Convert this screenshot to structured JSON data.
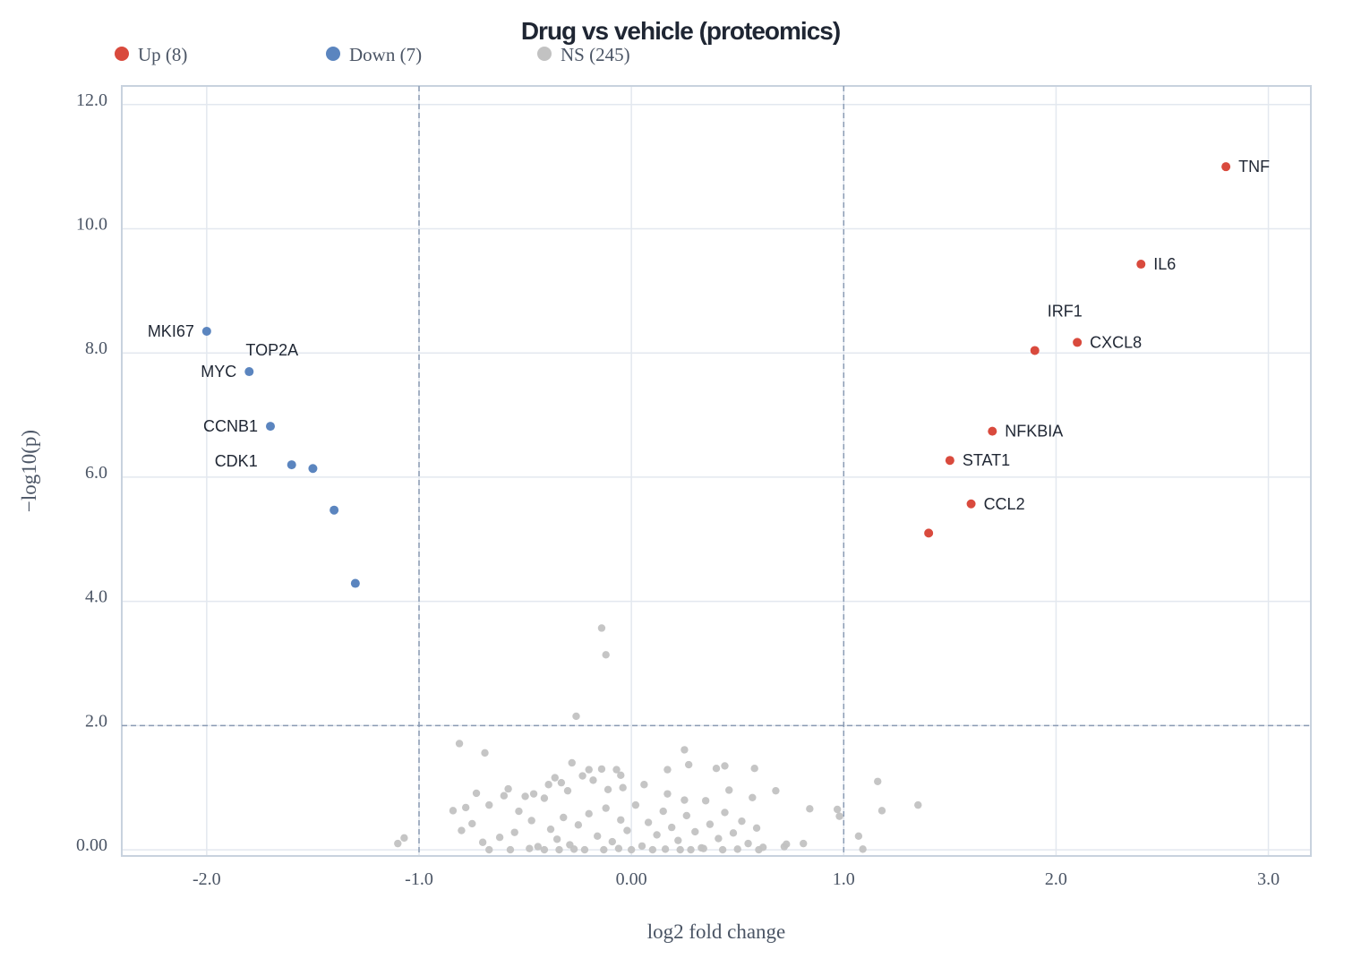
{
  "chart_data": {
    "type": "scatter",
    "title": "Drug vs vehicle (proteomics)",
    "xlabel": "log2 fold change",
    "ylabel": "−log10(p)",
    "xlim": [
      -2.4,
      3.2
    ],
    "ylim": [
      -0.1,
      12.3
    ],
    "x_ticks": [
      {
        "value": -2.0,
        "label": "-2.0"
      },
      {
        "value": -1.0,
        "label": "-1.0"
      },
      {
        "value": 0.0,
        "label": "0.00"
      },
      {
        "value": 1.0,
        "label": "1.0"
      },
      {
        "value": 2.0,
        "label": "2.0"
      },
      {
        "value": 3.0,
        "label": "3.0"
      }
    ],
    "y_ticks": [
      {
        "value": 0.0,
        "label": "0.00"
      },
      {
        "value": 2.0,
        "label": "2.0"
      },
      {
        "value": 4.0,
        "label": "4.0"
      },
      {
        "value": 6.0,
        "label": "6.0"
      },
      {
        "value": 8.0,
        "label": "8.0"
      },
      {
        "value": 10.0,
        "label": "10.0"
      },
      {
        "value": 12.0,
        "label": "12.0"
      }
    ],
    "thresholds": {
      "x": [
        -1.0,
        1.0
      ],
      "y": [
        2.0
      ]
    },
    "grid": true,
    "legend_position": "top-left",
    "colors": {
      "up": "#d94a3d",
      "down": "#5b85bf",
      "ns": "#c2c2c2"
    },
    "legend": [
      {
        "key": "up",
        "label": "Up (8)"
      },
      {
        "key": "down",
        "label": "Down (7)"
      },
      {
        "key": "ns",
        "label": "NS (245)"
      }
    ],
    "series": [
      {
        "key": "up",
        "points": [
          {
            "x": 2.8,
            "y": 11.0,
            "label": "TNF"
          },
          {
            "x": 2.4,
            "y": 9.43,
            "label": "IL6"
          },
          {
            "x": 2.1,
            "y": 8.17,
            "label": "CXCL8"
          },
          {
            "x": 1.9,
            "y": 8.04,
            "label": "IRF1"
          },
          {
            "x": 1.7,
            "y": 6.74,
            "label": "NFKBIA"
          },
          {
            "x": 1.5,
            "y": 6.27,
            "label": "STAT1"
          },
          {
            "x": 1.6,
            "y": 5.57,
            "label": "CCL2"
          },
          {
            "x": 1.4,
            "y": 5.1
          }
        ]
      },
      {
        "key": "down",
        "points": [
          {
            "x": -2.0,
            "y": 8.35,
            "label": "MKI67"
          },
          {
            "x": -1.8,
            "y": 7.7,
            "label": "MYC"
          },
          {
            "x": -1.7,
            "y": 6.82,
            "label": "CCNB1"
          },
          {
            "x": -1.6,
            "y": 6.2,
            "label": "CDK1"
          },
          {
            "x": -1.5,
            "y": 6.14,
            "label": "TOP2A"
          },
          {
            "x": -1.4,
            "y": 5.47
          },
          {
            "x": -1.3,
            "y": 4.29
          }
        ]
      },
      {
        "key": "ns",
        "points": [
          {
            "x": -0.14,
            "y": 3.57
          },
          {
            "x": -0.12,
            "y": 3.14
          },
          {
            "x": -0.26,
            "y": 2.15
          },
          {
            "x": -0.81,
            "y": 1.71
          },
          {
            "x": -0.69,
            "y": 1.56
          },
          {
            "x": 0.25,
            "y": 1.61
          },
          {
            "x": 0.27,
            "y": 1.37
          },
          {
            "x": 0.44,
            "y": 1.35
          },
          {
            "x": 0.58,
            "y": 1.31
          },
          {
            "x": -0.28,
            "y": 1.4
          },
          {
            "x": -0.2,
            "y": 1.29
          },
          {
            "x": -0.14,
            "y": 1.3
          },
          {
            "x": -0.07,
            "y": 1.29
          },
          {
            "x": -0.05,
            "y": 1.2
          },
          {
            "x": 0.17,
            "y": 1.29
          },
          {
            "x": 0.4,
            "y": 1.31
          },
          {
            "x": 1.16,
            "y": 1.1
          },
          {
            "x": -1.07,
            "y": 0.19
          },
          {
            "x": -1.1,
            "y": 0.1
          },
          {
            "x": 1.35,
            "y": 0.72
          },
          {
            "x": 1.18,
            "y": 0.63
          },
          {
            "x": 0.84,
            "y": 0.66
          },
          {
            "x": 0.97,
            "y": 0.65
          },
          {
            "x": 0.98,
            "y": 0.54
          },
          {
            "x": 1.07,
            "y": 0.22
          },
          {
            "x": 1.09,
            "y": 0.01
          },
          {
            "x": 0.81,
            "y": 0.1
          },
          {
            "x": 0.72,
            "y": 0.05
          },
          {
            "x": 0.73,
            "y": 0.09
          },
          {
            "x": 0.68,
            "y": 0.95
          },
          {
            "x": -0.84,
            "y": 0.63
          },
          {
            "x": -0.78,
            "y": 0.68
          },
          {
            "x": -0.73,
            "y": 0.91
          },
          {
            "x": -0.67,
            "y": 0.72
          },
          {
            "x": -0.6,
            "y": 0.87
          },
          {
            "x": -0.58,
            "y": 0.98
          },
          {
            "x": -0.53,
            "y": 0.62
          },
          {
            "x": -0.5,
            "y": 0.86
          },
          {
            "x": -0.46,
            "y": 0.9
          },
          {
            "x": -0.41,
            "y": 0.83
          },
          {
            "x": -0.39,
            "y": 1.05
          },
          {
            "x": -0.36,
            "y": 1.16
          },
          {
            "x": -0.33,
            "y": 1.08
          },
          {
            "x": -0.3,
            "y": 0.95
          },
          {
            "x": -0.23,
            "y": 1.19
          },
          {
            "x": -0.18,
            "y": 1.12
          },
          {
            "x": -0.11,
            "y": 0.97
          },
          {
            "x": -0.04,
            "y": 1.0
          },
          {
            "x": 0.06,
            "y": 1.05
          },
          {
            "x": 0.17,
            "y": 0.9
          },
          {
            "x": 0.25,
            "y": 0.8
          },
          {
            "x": 0.35,
            "y": 0.79
          },
          {
            "x": 0.46,
            "y": 0.96
          },
          {
            "x": 0.57,
            "y": 0.84
          },
          {
            "x": -0.8,
            "y": 0.31
          },
          {
            "x": -0.75,
            "y": 0.42
          },
          {
            "x": -0.7,
            "y": 0.12
          },
          {
            "x": -0.62,
            "y": 0.2
          },
          {
            "x": -0.55,
            "y": 0.28
          },
          {
            "x": -0.47,
            "y": 0.47
          },
          {
            "x": -0.44,
            "y": 0.05
          },
          {
            "x": -0.38,
            "y": 0.33
          },
          {
            "x": -0.35,
            "y": 0.17
          },
          {
            "x": -0.32,
            "y": 0.52
          },
          {
            "x": -0.29,
            "y": 0.08
          },
          {
            "x": -0.25,
            "y": 0.4
          },
          {
            "x": -0.2,
            "y": 0.58
          },
          {
            "x": -0.16,
            "y": 0.22
          },
          {
            "x": -0.12,
            "y": 0.67
          },
          {
            "x": -0.09,
            "y": 0.13
          },
          {
            "x": -0.05,
            "y": 0.48
          },
          {
            "x": -0.02,
            "y": 0.31
          },
          {
            "x": 0.02,
            "y": 0.72
          },
          {
            "x": 0.05,
            "y": 0.06
          },
          {
            "x": 0.08,
            "y": 0.44
          },
          {
            "x": 0.12,
            "y": 0.24
          },
          {
            "x": 0.15,
            "y": 0.62
          },
          {
            "x": 0.19,
            "y": 0.36
          },
          {
            "x": 0.22,
            "y": 0.15
          },
          {
            "x": 0.26,
            "y": 0.55
          },
          {
            "x": 0.3,
            "y": 0.29
          },
          {
            "x": 0.33,
            "y": 0.03
          },
          {
            "x": 0.37,
            "y": 0.41
          },
          {
            "x": 0.41,
            "y": 0.18
          },
          {
            "x": 0.44,
            "y": 0.6
          },
          {
            "x": 0.48,
            "y": 0.27
          },
          {
            "x": 0.52,
            "y": 0.46
          },
          {
            "x": 0.55,
            "y": 0.1
          },
          {
            "x": 0.59,
            "y": 0.35
          },
          {
            "x": 0.62,
            "y": 0.04
          },
          {
            "x": -0.67,
            "y": 0.0
          },
          {
            "x": -0.57,
            "y": 0.0
          },
          {
            "x": -0.48,
            "y": 0.02
          },
          {
            "x": -0.41,
            "y": 0.0
          },
          {
            "x": -0.34,
            "y": 0.0
          },
          {
            "x": -0.27,
            "y": 0.01
          },
          {
            "x": -0.22,
            "y": 0.0
          },
          {
            "x": -0.13,
            "y": 0.0
          },
          {
            "x": -0.06,
            "y": 0.02
          },
          {
            "x": 0.0,
            "y": 0.0
          },
          {
            "x": 0.1,
            "y": 0.0
          },
          {
            "x": 0.16,
            "y": 0.01
          },
          {
            "x": 0.23,
            "y": 0.0
          },
          {
            "x": 0.28,
            "y": 0.0
          },
          {
            "x": 0.34,
            "y": 0.02
          },
          {
            "x": 0.43,
            "y": 0.0
          },
          {
            "x": 0.5,
            "y": 0.01
          },
          {
            "x": 0.6,
            "y": 0.0
          }
        ]
      }
    ]
  }
}
